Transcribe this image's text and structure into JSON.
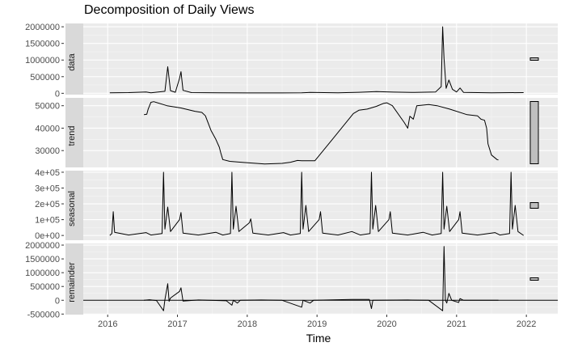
{
  "chart_data": {
    "type": "line",
    "title": "Decomposition of Daily Views",
    "xlabel": "Time",
    "xlim": [
      2015.65,
      2022.45
    ],
    "x_ticks": [
      "2016",
      "2017",
      "2018",
      "2019",
      "2020",
      "2021",
      "2022"
    ],
    "grid": true,
    "panels": [
      {
        "name": "data",
        "ylim": [
          -40000,
          2100000
        ],
        "y_ticks": [
          0,
          500000,
          1000000,
          1500000,
          2000000
        ],
        "y_tick_labels": [
          "0",
          "500000",
          "1000000",
          "1500000",
          "2000000"
        ],
        "scale_bar": "short",
        "points": [
          [
            2016.03,
            15000
          ],
          [
            2016.3,
            20000
          ],
          [
            2016.55,
            40000
          ],
          [
            2016.62,
            15000
          ],
          [
            2016.82,
            60000
          ],
          [
            2016.86,
            800000
          ],
          [
            2016.9,
            80000
          ],
          [
            2016.97,
            30000
          ],
          [
            2017.03,
            450000
          ],
          [
            2017.05,
            650000
          ],
          [
            2017.08,
            90000
          ],
          [
            2017.2,
            20000
          ],
          [
            2017.6,
            15000
          ],
          [
            2018.0,
            10000
          ],
          [
            2018.5,
            10000
          ],
          [
            2018.78,
            15000
          ],
          [
            2018.9,
            25000
          ],
          [
            2019.3,
            15000
          ],
          [
            2019.6,
            30000
          ],
          [
            2019.85,
            50000
          ],
          [
            2020.1,
            35000
          ],
          [
            2020.4,
            25000
          ],
          [
            2020.7,
            40000
          ],
          [
            2020.78,
            200000
          ],
          [
            2020.8,
            2000000
          ],
          [
            2020.82,
            1050000
          ],
          [
            2020.85,
            150000
          ],
          [
            2020.89,
            400000
          ],
          [
            2020.94,
            120000
          ],
          [
            2021.0,
            40000
          ],
          [
            2021.05,
            160000
          ],
          [
            2021.1,
            25000
          ],
          [
            2021.5,
            15000
          ],
          [
            2021.96,
            20000
          ]
        ]
      },
      {
        "name": "trend",
        "ylim": [
          22500,
          53500
        ],
        "y_ticks": [
          30000,
          40000,
          50000
        ],
        "y_tick_labels": [
          "30000",
          "40000",
          "50000"
        ],
        "scale_bar": "tall",
        "points": [
          [
            2016.52,
            46000
          ],
          [
            2016.56,
            46200
          ],
          [
            2016.58,
            48500
          ],
          [
            2016.62,
            51500
          ],
          [
            2016.66,
            51800
          ],
          [
            2016.85,
            50000
          ],
          [
            2017.05,
            49000
          ],
          [
            2017.25,
            47500
          ],
          [
            2017.35,
            47000
          ],
          [
            2017.4,
            45500
          ],
          [
            2017.48,
            39000
          ],
          [
            2017.55,
            35000
          ],
          [
            2017.6,
            31500
          ],
          [
            2017.62,
            29000
          ],
          [
            2017.65,
            26000
          ],
          [
            2017.75,
            25200
          ],
          [
            2017.95,
            24700
          ],
          [
            2018.25,
            24000
          ],
          [
            2018.5,
            24300
          ],
          [
            2018.62,
            24800
          ],
          [
            2018.72,
            25600
          ],
          [
            2018.78,
            25500
          ],
          [
            2018.97,
            25500
          ],
          [
            2019.22,
            35000
          ],
          [
            2019.52,
            46500
          ],
          [
            2019.6,
            48000
          ],
          [
            2019.72,
            48500
          ],
          [
            2019.85,
            49700
          ],
          [
            2019.95,
            51000
          ],
          [
            2020.0,
            51300
          ],
          [
            2020.08,
            50000
          ],
          [
            2020.25,
            42500
          ],
          [
            2020.3,
            40000
          ],
          [
            2020.33,
            45300
          ],
          [
            2020.38,
            44000
          ],
          [
            2020.43,
            50000
          ],
          [
            2020.6,
            50500
          ],
          [
            2020.72,
            50000
          ],
          [
            2020.9,
            48500
          ],
          [
            2021.15,
            46000
          ],
          [
            2021.3,
            45500
          ],
          [
            2021.35,
            44000
          ],
          [
            2021.4,
            43500
          ],
          [
            2021.43,
            40000
          ],
          [
            2021.45,
            33000
          ],
          [
            2021.5,
            28000
          ],
          [
            2021.58,
            26000
          ],
          [
            2021.6,
            25800
          ]
        ]
      },
      {
        "name": "seasonal",
        "ylim": [
          -30000,
          410000
        ],
        "y_ticks": [
          0,
          100000,
          200000,
          300000,
          400000
        ],
        "y_tick_labels": [
          "0e+00",
          "1e+05",
          "2e+05",
          "3e+05",
          "4e+05"
        ],
        "scale_bar": "medium",
        "points": [
          [
            2016.03,
            0
          ],
          [
            2016.06,
            12000
          ],
          [
            2016.08,
            150000
          ],
          [
            2016.1,
            20000
          ],
          [
            2016.3,
            3000
          ],
          [
            2016.55,
            18000
          ],
          [
            2016.62,
            3000
          ],
          [
            2016.78,
            12000
          ],
          [
            2016.8,
            400000
          ],
          [
            2016.82,
            40000
          ],
          [
            2016.86,
            180000
          ],
          [
            2016.9,
            25000
          ],
          [
            2017.03,
            100000
          ],
          [
            2017.05,
            145000
          ],
          [
            2017.08,
            15000
          ],
          [
            2017.3,
            3000
          ],
          [
            2017.55,
            20000
          ],
          [
            2017.65,
            3000
          ],
          [
            2017.76,
            12000
          ],
          [
            2017.78,
            400000
          ],
          [
            2017.8,
            40000
          ],
          [
            2017.84,
            185000
          ],
          [
            2017.88,
            25000
          ],
          [
            2018.03,
            80000
          ],
          [
            2018.05,
            105000
          ],
          [
            2018.08,
            15000
          ],
          [
            2018.3,
            3000
          ],
          [
            2018.52,
            18000
          ],
          [
            2018.62,
            3000
          ],
          [
            2018.76,
            12000
          ],
          [
            2018.78,
            400000
          ],
          [
            2018.8,
            40000
          ],
          [
            2018.84,
            190000
          ],
          [
            2018.88,
            25000
          ],
          [
            2019.03,
            100000
          ],
          [
            2019.05,
            150000
          ],
          [
            2019.08,
            15000
          ],
          [
            2019.3,
            3000
          ],
          [
            2019.5,
            25000
          ],
          [
            2019.62,
            3000
          ],
          [
            2019.76,
            12000
          ],
          [
            2019.78,
            400000
          ],
          [
            2019.8,
            40000
          ],
          [
            2019.84,
            190000
          ],
          [
            2019.88,
            25000
          ],
          [
            2020.03,
            100000
          ],
          [
            2020.05,
            150000
          ],
          [
            2020.08,
            15000
          ],
          [
            2020.3,
            3000
          ],
          [
            2020.52,
            20000
          ],
          [
            2020.65,
            3000
          ],
          [
            2020.78,
            12000
          ],
          [
            2020.8,
            400000
          ],
          [
            2020.82,
            40000
          ],
          [
            2020.86,
            185000
          ],
          [
            2020.9,
            25000
          ],
          [
            2021.03,
            100000
          ],
          [
            2021.05,
            150000
          ],
          [
            2021.08,
            15000
          ],
          [
            2021.3,
            3000
          ],
          [
            2021.55,
            18000
          ],
          [
            2021.62,
            3000
          ],
          [
            2021.76,
            12000
          ],
          [
            2021.78,
            400000
          ],
          [
            2021.8,
            40000
          ],
          [
            2021.84,
            190000
          ],
          [
            2021.88,
            25000
          ],
          [
            2021.96,
            0
          ]
        ]
      },
      {
        "name": "remainder",
        "ylim": [
          -520000,
          2060000
        ],
        "y_ticks": [
          -500000,
          0,
          500000,
          1000000,
          1500000,
          2000000
        ],
        "y_tick_labels": [
          "-500000",
          "0",
          "500000",
          "1000000",
          "1500000",
          "2000000"
        ],
        "scale_bar": "short",
        "points": [
          [
            2016.52,
            0
          ],
          [
            2016.6,
            20000
          ],
          [
            2016.7,
            -10000
          ],
          [
            2016.8,
            -380000
          ],
          [
            2016.82,
            20000
          ],
          [
            2016.86,
            600000
          ],
          [
            2016.88,
            -40000
          ],
          [
            2016.9,
            80000
          ],
          [
            2017.03,
            320000
          ],
          [
            2017.05,
            450000
          ],
          [
            2017.08,
            -30000
          ],
          [
            2017.3,
            10000
          ],
          [
            2017.7,
            -20000
          ],
          [
            2017.78,
            -180000
          ],
          [
            2017.8,
            0
          ],
          [
            2017.86,
            -100000
          ],
          [
            2017.9,
            0
          ],
          [
            2018.2,
            10000
          ],
          [
            2018.5,
            0
          ],
          [
            2018.78,
            -250000
          ],
          [
            2018.8,
            0
          ],
          [
            2018.9,
            -100000
          ],
          [
            2018.95,
            0
          ],
          [
            2019.5,
            30000
          ],
          [
            2019.75,
            30000
          ],
          [
            2019.78,
            -300000
          ],
          [
            2019.8,
            0
          ],
          [
            2020.3,
            10000
          ],
          [
            2020.6,
            0
          ],
          [
            2020.8,
            -380000
          ],
          [
            2020.82,
            1950000
          ],
          [
            2020.84,
            0
          ],
          [
            2020.86,
            -100000
          ],
          [
            2020.89,
            250000
          ],
          [
            2020.93,
            0
          ],
          [
            2021.03,
            -80000
          ],
          [
            2021.05,
            60000
          ],
          [
            2021.1,
            0
          ],
          [
            2021.6,
            0
          ]
        ]
      }
    ]
  }
}
